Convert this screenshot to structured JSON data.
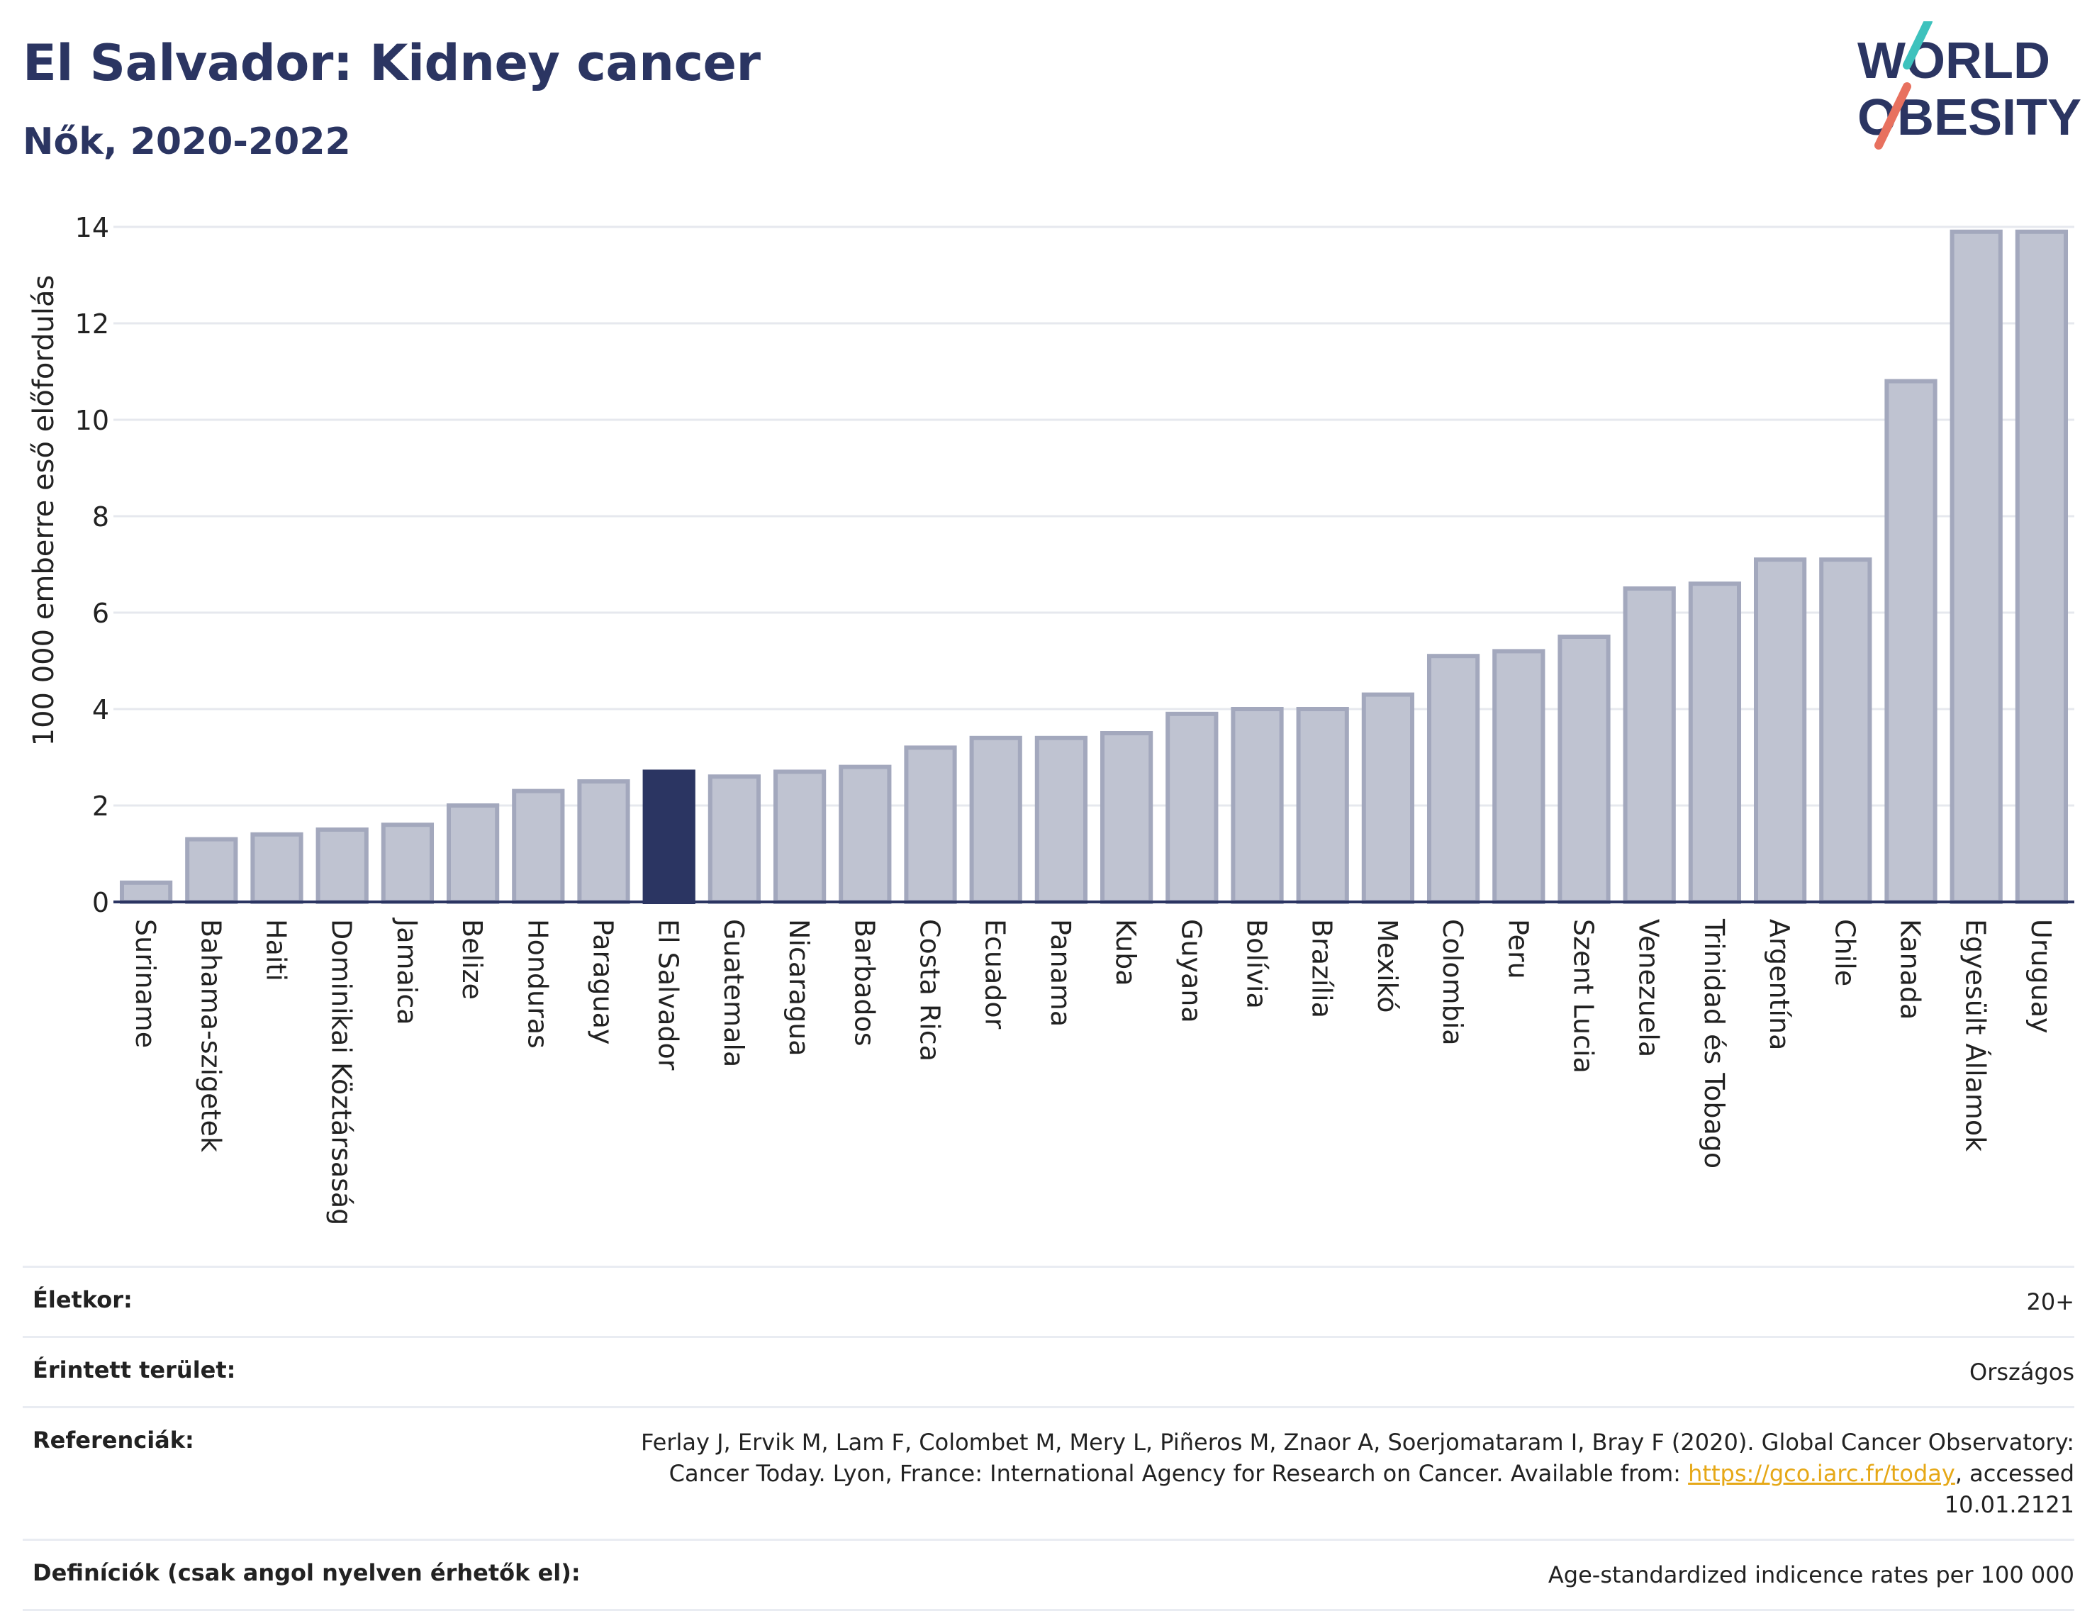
{
  "title": "El Salvador: Kidney cancer",
  "subtitle": "Nők, 2020-2022",
  "logo": {
    "line1": "WORLD",
    "line2": "OBESITY"
  },
  "colors": {
    "highlight": "#2b3562",
    "bar": "#bfc3d1",
    "bar_stroke": "#a3a8bd",
    "axis": "#2b3562",
    "grid": "#e6e8ee"
  },
  "chart_data": {
    "type": "bar",
    "ylabel": "100 000 emberre eső előfordulás",
    "ylim": [
      0,
      14
    ],
    "yticks": [
      0,
      2,
      4,
      6,
      8,
      10,
      12,
      14
    ],
    "highlight": "El Salvador",
    "categories": [
      "Suriname",
      "Bahama-szigetek",
      "Haiti",
      "Dominikai Köztársaság",
      "Jamaica",
      "Belize",
      "Honduras",
      "Paraguay",
      "El Salvador",
      "Guatemala",
      "Nicaragua",
      "Barbados",
      "Costa Rica",
      "Ecuador",
      "Panama",
      "Kuba",
      "Guyana",
      "Bolívia",
      "Brazília",
      "Mexikó",
      "Colombia",
      "Peru",
      "Szent Lucia",
      "Venezuela",
      "Trinidad és Tobago",
      "Argentína",
      "Chile",
      "Kanada",
      "Egyesült Államok",
      "Uruguay"
    ],
    "values": [
      0.4,
      1.3,
      1.4,
      1.5,
      1.6,
      2.0,
      2.3,
      2.5,
      2.7,
      2.6,
      2.7,
      2.8,
      3.2,
      3.4,
      3.4,
      3.5,
      3.9,
      4.0,
      4.0,
      4.3,
      5.1,
      5.2,
      5.5,
      6.5,
      6.6,
      7.1,
      7.1,
      10.8,
      13.9,
      13.9
    ]
  },
  "meta": {
    "age_label": "Életkor:",
    "age_value": "20+",
    "area_label": "Érintett terület:",
    "area_value": "Országos",
    "ref_label": "Referenciák:",
    "ref_text1": "Ferlay J, Ervik M, Lam F, Colombet M, Mery L, Piñeros M, Znaor A, Soerjomataram I, Bray F (2020). Global Cancer Observatory: Cancer Today. Lyon, France: International Agency for Research on Cancer. Available from: ",
    "ref_link": "https://gco.iarc.fr/today",
    "ref_text2": ", accessed 10.01.2121",
    "def_label": "Definíciók (csak angol nyelven érhetők el):",
    "def_value": "Age-standardized indicence rates per 100 000"
  }
}
